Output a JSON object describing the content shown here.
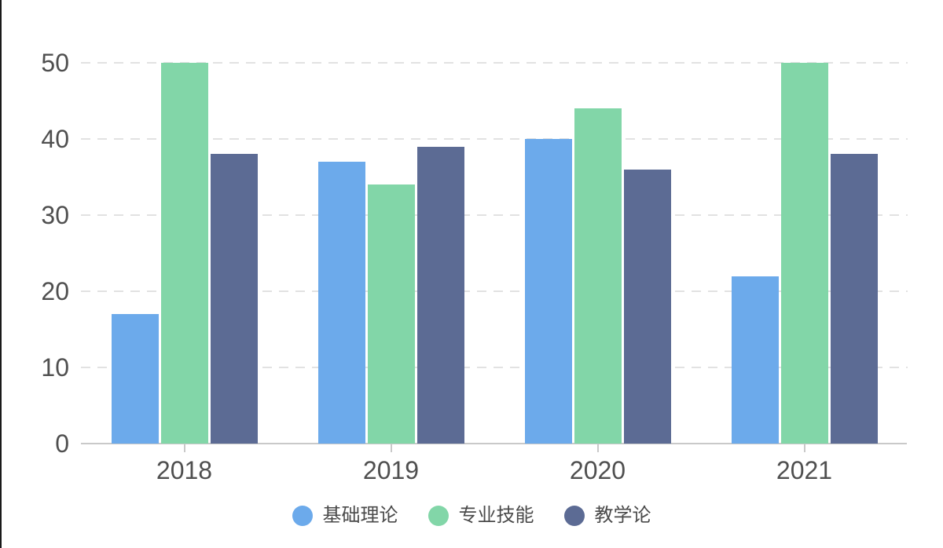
{
  "chart_data": {
    "type": "bar",
    "title": "",
    "categories": [
      "2018",
      "2019",
      "2020",
      "2021"
    ],
    "series": [
      {
        "name": "基础理论",
        "color": "#6caaeb",
        "values": [
          17,
          37,
          40,
          22
        ]
      },
      {
        "name": "专业技能",
        "color": "#82d6a8",
        "values": [
          50,
          34,
          44,
          50
        ]
      },
      {
        "name": "教学论",
        "color": "#5c6b94",
        "values": [
          38,
          39,
          36,
          38
        ]
      }
    ],
    "xlabel": "",
    "ylabel": "",
    "ylim": [
      0,
      50
    ],
    "yticks": [
      0,
      10,
      20,
      30,
      40,
      50
    ],
    "grid": "horizontal-dashed",
    "legend_position": "bottom"
  },
  "colors": {
    "axis_line": "#c9c9c9",
    "gridline": "#e2e2e2",
    "axis_label": "#4f4f4f",
    "legend_text": "#4a4a4a",
    "window_edge": "#191919",
    "background": "#ffffff"
  }
}
